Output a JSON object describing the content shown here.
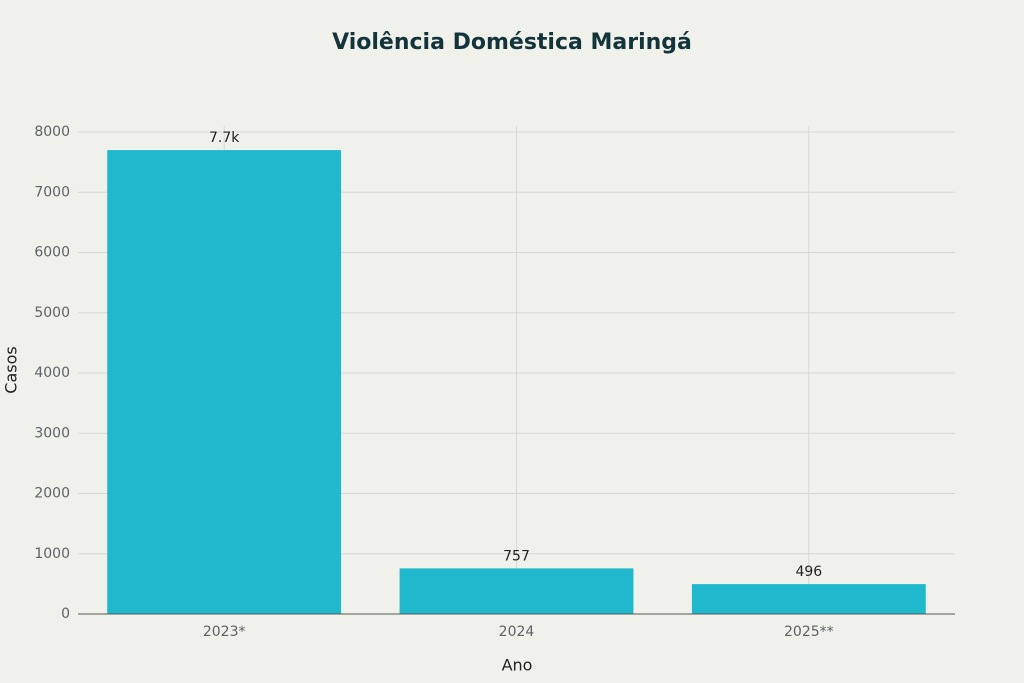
{
  "chart_data": {
    "type": "bar",
    "title": "Violência Doméstica Maringá",
    "x_label": "Ano",
    "y_label": "Casos",
    "categories": [
      "2023*",
      "2024",
      "2025**"
    ],
    "values": [
      7700,
      757,
      496
    ],
    "value_labels": [
      "7.7k",
      "757",
      "496"
    ],
    "color": "#1fb8cd",
    "ylim": [
      0,
      8100
    ],
    "yticks": [
      0,
      1000,
      2000,
      3000,
      4000,
      5000,
      6000,
      7000,
      8000
    ],
    "grid": true
  }
}
